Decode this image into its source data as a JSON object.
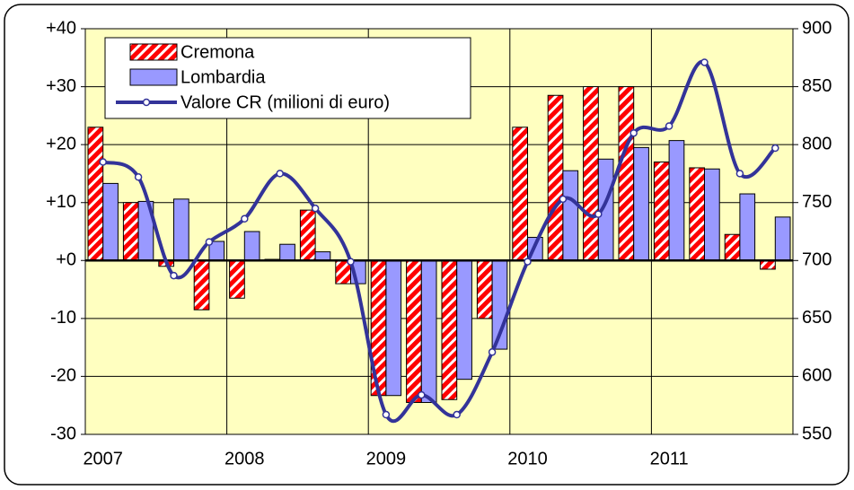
{
  "chart_data": {
    "type": "bar",
    "categories": [
      "2007",
      null,
      null,
      null,
      "2008",
      null,
      null,
      null,
      "2009",
      null,
      null,
      null,
      "2010",
      null,
      null,
      null,
      "2011",
      null,
      null,
      null
    ],
    "series": [
      {
        "name": "Cremona",
        "color": "#ff0000",
        "values": [
          23,
          10,
          -1,
          -8.5,
          -6.5,
          0.2,
          8.7,
          -4,
          -23.3,
          -24.5,
          -24,
          -10,
          23,
          28.5,
          30,
          30,
          17,
          16,
          4.5,
          -1.5
        ]
      },
      {
        "name": "Lombardia",
        "color": "#9999ff",
        "values": [
          13.3,
          10.2,
          10.6,
          3.3,
          5,
          2.8,
          1.5,
          -4,
          -23.3,
          -24.5,
          -20.5,
          -15.3,
          4,
          15.5,
          17.5,
          19.5,
          20.7,
          15.8,
          11.5,
          7.5
        ]
      },
      {
        "name": "Valore CR (milioni di euro)",
        "color": "#333399",
        "type": "line",
        "axis": "y2",
        "values": [
          785,
          772,
          687,
          716,
          736,
          775,
          745,
          699,
          567,
          584,
          567,
          621,
          699,
          753,
          740,
          810,
          816,
          871,
          775,
          797
        ]
      }
    ],
    "ylim": [
      -30,
      40
    ],
    "yticks": [
      {
        "value": 40,
        "label": "+40"
      },
      {
        "value": 30,
        "label": "+30"
      },
      {
        "value": 20,
        "label": "+20"
      },
      {
        "value": 10,
        "label": "+10"
      },
      {
        "value": 0,
        "label": "+0"
      },
      -10,
      -20,
      -30
    ],
    "y2lim": [
      550,
      900
    ],
    "y2ticks": [
      550,
      600,
      650,
      700,
      750,
      800,
      850,
      900
    ],
    "grid": true,
    "legend": "top-left"
  }
}
